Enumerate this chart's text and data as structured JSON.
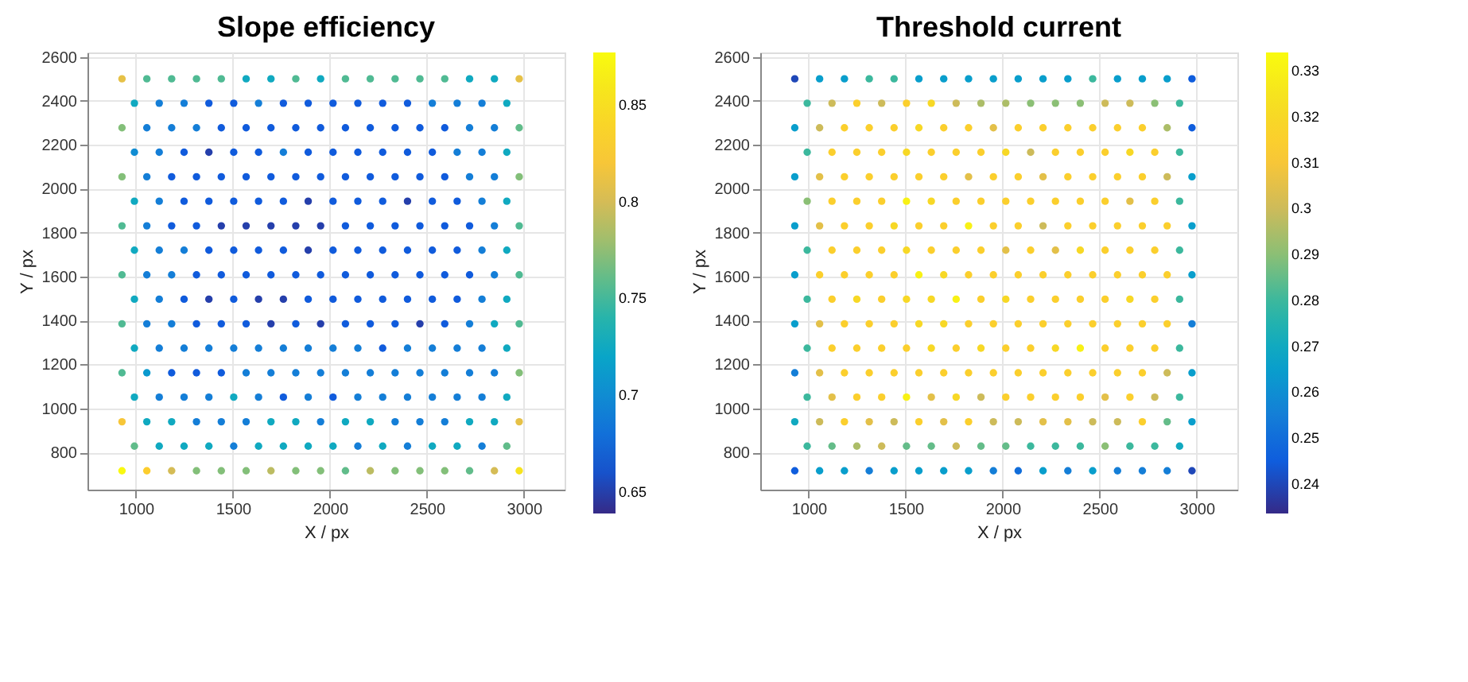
{
  "chart_data": [
    {
      "type": "scatter",
      "title": "Slope efficiency",
      "xlabel": "X / px",
      "ylabel": "Y / px",
      "xlim": [
        750,
        3210
      ],
      "ylim": [
        630,
        2620
      ],
      "xticks": [
        1000,
        1500,
        2000,
        2500,
        3000
      ],
      "yticks": [
        800,
        1000,
        1200,
        1400,
        1600,
        1800,
        2000,
        2200,
        2400,
        2600
      ],
      "grid": true,
      "marker": "circle",
      "clim": [
        0.639,
        0.877
      ],
      "cticks": [
        0.65,
        0.7,
        0.75,
        0.8,
        0.85
      ],
      "x": [
        928,
        1056,
        1184,
        1312,
        1440,
        1568,
        1696,
        1824,
        1952,
        2080,
        2208,
        2336,
        2464,
        2592,
        2720,
        2848,
        2976,
        992,
        1120,
        1248,
        1376,
        1504,
        1632,
        1760,
        1888,
        2016,
        2144,
        2272,
        2400,
        2528,
        2656,
        2784,
        2912,
        928,
        1056,
        1184,
        1312,
        1440,
        1568,
        1696,
        1824,
        1952,
        2080,
        2208,
        2336,
        2464,
        2592,
        2720,
        2848,
        2976,
        992,
        1120,
        1248,
        1376,
        1504,
        1632,
        1760,
        1888,
        2016,
        2144,
        2272,
        2400,
        2528,
        2656,
        2784,
        2912,
        928,
        1056,
        1184,
        1312,
        1440,
        1568,
        1696,
        1824,
        1952,
        2080,
        2208,
        2336,
        2464,
        2592,
        2720,
        2848,
        2976,
        992,
        1120,
        1248,
        1376,
        1504,
        1632,
        1760,
        1888,
        2016,
        2144,
        2272,
        2400,
        2528,
        2656,
        2784,
        2912,
        928,
        1056,
        1184,
        1312,
        1440,
        1568,
        1696,
        1824,
        1952,
        2080,
        2208,
        2336,
        2464,
        2592,
        2720,
        2848,
        2976,
        992,
        1120,
        1248,
        1376,
        1504,
        1632,
        1760,
        1888,
        2016,
        2144,
        2272,
        2400,
        2528,
        2656,
        2784,
        2912,
        928,
        1056,
        1184,
        1312,
        1440,
        1568,
        1696,
        1824,
        1952,
        2080,
        2208,
        2336,
        2464,
        2592,
        2720,
        2848,
        2976,
        992,
        1120,
        1248,
        1376,
        1504,
        1632,
        1760,
        1888,
        2016,
        2144,
        2272,
        2400,
        2528,
        2656,
        2784,
        2912,
        928,
        1056,
        1184,
        1312,
        1440,
        1568,
        1696,
        1824,
        1952,
        2080,
        2208,
        2336,
        2464,
        2592,
        2720,
        2848,
        2976,
        992,
        1120,
        1248,
        1376,
        1504,
        1632,
        1760,
        1888,
        2016,
        2144,
        2272,
        2400,
        2528,
        2656,
        2784,
        2912,
        928,
        1056,
        1184,
        1312,
        1440,
        1568,
        1696,
        1824,
        1952,
        2080,
        2208,
        2336,
        2464,
        2592,
        2720,
        2848,
        2976,
        992,
        1120,
        1248,
        1376,
        1504,
        1632,
        1760,
        1888,
        2016,
        2144,
        2272,
        2400,
        2528,
        2656,
        2784,
        2912,
        928,
        1056,
        1184,
        1312,
        1440,
        1568,
        1696,
        1824,
        1952,
        2080,
        2208,
        2336,
        2464,
        2592,
        2720,
        2848,
        2976,
        992,
        1120,
        1248,
        1376,
        1504,
        1632,
        1760,
        1888,
        2016,
        2144,
        2272,
        2400,
        2528,
        2656,
        2784,
        2912,
        928,
        1056,
        1184,
        1312,
        1440,
        1568,
        1696,
        1824,
        1952,
        2080,
        2208,
        2336,
        2464,
        2592,
        2720,
        2848,
        2976
      ],
      "values": [
        2500,
        2500,
        2500,
        2500,
        2500,
        2500,
        2500,
        2500,
        2500,
        2500,
        2500,
        2500,
        2500,
        2500,
        2500,
        2500,
        2500,
        2389,
        2389,
        2389,
        2389,
        2389,
        2389,
        2389,
        2389,
        2389,
        2389,
        2389,
        2389,
        2389,
        2389,
        2389,
        2389,
        2277,
        2277,
        2277,
        2277,
        2277,
        2277,
        2277,
        2277,
        2277,
        2277,
        2277,
        2277,
        2277,
        2277,
        2277,
        2277,
        2277,
        2166,
        2166,
        2166,
        2166,
        2166,
        2166,
        2166,
        2166,
        2166,
        2166,
        2166,
        2166,
        2166,
        2166,
        2166,
        2166,
        2054,
        2054,
        2054,
        2054,
        2054,
        2054,
        2054,
        2054,
        2054,
        2054,
        2054,
        2054,
        2054,
        2054,
        2054,
        2054,
        2054,
        1943,
        1943,
        1943,
        1943,
        1943,
        1943,
        1943,
        1943,
        1943,
        1943,
        1943,
        1943,
        1943,
        1943,
        1943,
        1943,
        1831,
        1831,
        1831,
        1831,
        1831,
        1831,
        1831,
        1831,
        1831,
        1831,
        1831,
        1831,
        1831,
        1831,
        1831,
        1831,
        1831,
        1720,
        1720,
        1720,
        1720,
        1720,
        1720,
        1720,
        1720,
        1720,
        1720,
        1720,
        1720,
        1720,
        1720,
        1720,
        1720,
        1608,
        1608,
        1608,
        1608,
        1608,
        1608,
        1608,
        1608,
        1608,
        1608,
        1608,
        1608,
        1608,
        1608,
        1608,
        1608,
        1608,
        1497,
        1497,
        1497,
        1497,
        1497,
        1497,
        1497,
        1497,
        1497,
        1497,
        1497,
        1497,
        1497,
        1497,
        1497,
        1497,
        1385,
        1385,
        1385,
        1385,
        1385,
        1385,
        1385,
        1385,
        1385,
        1385,
        1385,
        1385,
        1385,
        1385,
        1385,
        1385,
        1385,
        1274,
        1274,
        1274,
        1274,
        1274,
        1274,
        1274,
        1274,
        1274,
        1274,
        1274,
        1274,
        1274,
        1274,
        1274,
        1274,
        1162,
        1162,
        1162,
        1162,
        1162,
        1162,
        1162,
        1162,
        1162,
        1162,
        1162,
        1162,
        1162,
        1162,
        1162,
        1162,
        1162,
        1051,
        1051,
        1051,
        1051,
        1051,
        1051,
        1051,
        1051,
        1051,
        1051,
        1051,
        1051,
        1051,
        1051,
        1051,
        1051,
        939,
        939,
        939,
        939,
        939,
        939,
        939,
        939,
        939,
        939,
        939,
        939,
        939,
        939,
        939,
        939,
        939,
        828,
        828,
        828,
        828,
        828,
        828,
        828,
        828,
        828,
        828,
        828,
        828,
        828,
        828,
        828,
        828,
        716,
        716,
        716,
        716,
        716,
        716,
        716,
        716,
        716,
        716,
        716,
        716,
        716,
        716,
        716,
        716,
        716
      ],
      "cvalues": [
        0.81,
        0.755,
        0.755,
        0.755,
        0.755,
        0.725,
        0.725,
        0.755,
        0.725,
        0.755,
        0.755,
        0.755,
        0.755,
        0.755,
        0.725,
        0.725,
        0.81,
        0.725,
        0.69,
        0.69,
        0.665,
        0.665,
        0.69,
        0.665,
        0.665,
        0.665,
        0.665,
        0.665,
        0.665,
        0.69,
        0.69,
        0.69,
        0.725,
        0.77,
        0.69,
        0.69,
        0.69,
        0.665,
        0.665,
        0.665,
        0.665,
        0.665,
        0.665,
        0.665,
        0.665,
        0.665,
        0.665,
        0.69,
        0.69,
        0.76,
        0.7,
        0.69,
        0.665,
        0.65,
        0.665,
        0.665,
        0.69,
        0.665,
        0.665,
        0.665,
        0.665,
        0.665,
        0.665,
        0.69,
        0.69,
        0.725,
        0.77,
        0.69,
        0.665,
        0.665,
        0.665,
        0.665,
        0.665,
        0.665,
        0.665,
        0.665,
        0.665,
        0.665,
        0.665,
        0.665,
        0.69,
        0.69,
        0.77,
        0.725,
        0.69,
        0.665,
        0.665,
        0.665,
        0.665,
        0.665,
        0.65,
        0.665,
        0.665,
        0.665,
        0.65,
        0.665,
        0.665,
        0.69,
        0.725,
        0.755,
        0.69,
        0.665,
        0.665,
        0.65,
        0.65,
        0.65,
        0.65,
        0.65,
        0.665,
        0.665,
        0.665,
        0.665,
        0.665,
        0.665,
        0.69,
        0.755,
        0.725,
        0.69,
        0.69,
        0.665,
        0.665,
        0.665,
        0.665,
        0.65,
        0.665,
        0.665,
        0.665,
        0.665,
        0.665,
        0.665,
        0.69,
        0.725,
        0.755,
        0.69,
        0.69,
        0.665,
        0.665,
        0.665,
        0.665,
        0.665,
        0.665,
        0.665,
        0.665,
        0.665,
        0.665,
        0.665,
        0.665,
        0.69,
        0.755,
        0.725,
        0.69,
        0.665,
        0.65,
        0.665,
        0.65,
        0.65,
        0.665,
        0.665,
        0.665,
        0.665,
        0.665,
        0.665,
        0.665,
        0.69,
        0.725,
        0.755,
        0.69,
        0.69,
        0.665,
        0.665,
        0.665,
        0.65,
        0.665,
        0.65,
        0.665,
        0.665,
        0.665,
        0.65,
        0.665,
        0.69,
        0.725,
        0.755,
        0.725,
        0.69,
        0.69,
        0.69,
        0.69,
        0.69,
        0.69,
        0.69,
        0.69,
        0.69,
        0.665,
        0.69,
        0.69,
        0.69,
        0.69,
        0.725,
        0.755,
        0.71,
        0.665,
        0.665,
        0.665,
        0.69,
        0.69,
        0.69,
        0.69,
        0.69,
        0.69,
        0.69,
        0.69,
        0.69,
        0.69,
        0.69,
        0.77,
        0.725,
        0.69,
        0.69,
        0.69,
        0.725,
        0.69,
        0.665,
        0.69,
        0.665,
        0.69,
        0.69,
        0.69,
        0.69,
        0.69,
        0.69,
        0.725,
        0.82,
        0.725,
        0.725,
        0.69,
        0.69,
        0.69,
        0.725,
        0.725,
        0.69,
        0.725,
        0.725,
        0.69,
        0.69,
        0.69,
        0.725,
        0.725,
        0.81,
        0.76,
        0.725,
        0.725,
        0.725,
        0.69,
        0.725,
        0.725,
        0.725,
        0.725,
        0.69,
        0.725,
        0.69,
        0.725,
        0.725,
        0.69,
        0.76,
        0.875,
        0.83,
        0.8,
        0.77,
        0.77,
        0.77,
        0.79,
        0.77,
        0.77,
        0.76,
        0.79,
        0.77,
        0.77,
        0.77,
        0.76,
        0.8,
        0.855
      ]
    },
    {
      "type": "scatter",
      "title": "Threshold current",
      "xlabel": "X / px",
      "ylabel": "Y / px",
      "xlim": [
        750,
        3210
      ],
      "ylim": [
        630,
        2620
      ],
      "xticks": [
        1000,
        1500,
        2000,
        2500,
        3000
      ],
      "yticks": [
        800,
        1000,
        1200,
        1400,
        1600,
        1800,
        2000,
        2200,
        2400,
        2600
      ],
      "grid": true,
      "marker": "circle",
      "clim": [
        0.2336,
        0.334
      ],
      "cticks": [
        0.24,
        0.25,
        0.26,
        0.27,
        0.28,
        0.29,
        0.3,
        0.31,
        0.32,
        0.33
      ],
      "x": [
        928,
        1056,
        1184,
        1312,
        1440,
        1568,
        1696,
        1824,
        1952,
        2080,
        2208,
        2336,
        2464,
        2592,
        2720,
        2848,
        2976,
        992,
        1120,
        1248,
        1376,
        1504,
        1632,
        1760,
        1888,
        2016,
        2144,
        2272,
        2400,
        2528,
        2656,
        2784,
        2912,
        928,
        1056,
        1184,
        1312,
        1440,
        1568,
        1696,
        1824,
        1952,
        2080,
        2208,
        2336,
        2464,
        2592,
        2720,
        2848,
        2976,
        992,
        1120,
        1248,
        1376,
        1504,
        1632,
        1760,
        1888,
        2016,
        2144,
        2272,
        2400,
        2528,
        2656,
        2784,
        2912,
        928,
        1056,
        1184,
        1312,
        1440,
        1568,
        1696,
        1824,
        1952,
        2080,
        2208,
        2336,
        2464,
        2592,
        2720,
        2848,
        2976,
        992,
        1120,
        1248,
        1376,
        1504,
        1632,
        1760,
        1888,
        2016,
        2144,
        2272,
        2400,
        2528,
        2656,
        2784,
        2912,
        928,
        1056,
        1184,
        1312,
        1440,
        1568,
        1696,
        1824,
        1952,
        2080,
        2208,
        2336,
        2464,
        2592,
        2720,
        2848,
        2976,
        992,
        1120,
        1248,
        1376,
        1504,
        1632,
        1760,
        1888,
        2016,
        2144,
        2272,
        2400,
        2528,
        2656,
        2784,
        2912,
        928,
        1056,
        1184,
        1312,
        1440,
        1568,
        1696,
        1824,
        1952,
        2080,
        2208,
        2336,
        2464,
        2592,
        2720,
        2848,
        2976,
        992,
        1120,
        1248,
        1376,
        1504,
        1632,
        1760,
        1888,
        2016,
        2144,
        2272,
        2400,
        2528,
        2656,
        2784,
        2912,
        928,
        1056,
        1184,
        1312,
        1440,
        1568,
        1696,
        1824,
        1952,
        2080,
        2208,
        2336,
        2464,
        2592,
        2720,
        2848,
        2976,
        992,
        1120,
        1248,
        1376,
        1504,
        1632,
        1760,
        1888,
        2016,
        2144,
        2272,
        2400,
        2528,
        2656,
        2784,
        2912,
        928,
        1056,
        1184,
        1312,
        1440,
        1568,
        1696,
        1824,
        1952,
        2080,
        2208,
        2336,
        2464,
        2592,
        2720,
        2848,
        2976,
        992,
        1120,
        1248,
        1376,
        1504,
        1632,
        1760,
        1888,
        2016,
        2144,
        2272,
        2400,
        2528,
        2656,
        2784,
        2912,
        928,
        1056,
        1184,
        1312,
        1440,
        1568,
        1696,
        1824,
        1952,
        2080,
        2208,
        2336,
        2464,
        2592,
        2720,
        2848,
        2976,
        992,
        1120,
        1248,
        1376,
        1504,
        1632,
        1760,
        1888,
        2016,
        2144,
        2272,
        2400,
        2528,
        2656,
        2784,
        2912,
        928,
        1056,
        1184,
        1312,
        1440,
        1568,
        1696,
        1824,
        1952,
        2080,
        2208,
        2336,
        2464,
        2592,
        2720,
        2848,
        2976
      ],
      "values": [
        2500,
        2500,
        2500,
        2500,
        2500,
        2500,
        2500,
        2500,
        2500,
        2500,
        2500,
        2500,
        2500,
        2500,
        2500,
        2500,
        2500,
        2389,
        2389,
        2389,
        2389,
        2389,
        2389,
        2389,
        2389,
        2389,
        2389,
        2389,
        2389,
        2389,
        2389,
        2389,
        2389,
        2277,
        2277,
        2277,
        2277,
        2277,
        2277,
        2277,
        2277,
        2277,
        2277,
        2277,
        2277,
        2277,
        2277,
        2277,
        2277,
        2277,
        2166,
        2166,
        2166,
        2166,
        2166,
        2166,
        2166,
        2166,
        2166,
        2166,
        2166,
        2166,
        2166,
        2166,
        2166,
        2166,
        2054,
        2054,
        2054,
        2054,
        2054,
        2054,
        2054,
        2054,
        2054,
        2054,
        2054,
        2054,
        2054,
        2054,
        2054,
        2054,
        2054,
        1943,
        1943,
        1943,
        1943,
        1943,
        1943,
        1943,
        1943,
        1943,
        1943,
        1943,
        1943,
        1943,
        1943,
        1943,
        1943,
        1831,
        1831,
        1831,
        1831,
        1831,
        1831,
        1831,
        1831,
        1831,
        1831,
        1831,
        1831,
        1831,
        1831,
        1831,
        1831,
        1831,
        1720,
        1720,
        1720,
        1720,
        1720,
        1720,
        1720,
        1720,
        1720,
        1720,
        1720,
        1720,
        1720,
        1720,
        1720,
        1720,
        1608,
        1608,
        1608,
        1608,
        1608,
        1608,
        1608,
        1608,
        1608,
        1608,
        1608,
        1608,
        1608,
        1608,
        1608,
        1608,
        1608,
        1497,
        1497,
        1497,
        1497,
        1497,
        1497,
        1497,
        1497,
        1497,
        1497,
        1497,
        1497,
        1497,
        1497,
        1497,
        1497,
        1385,
        1385,
        1385,
        1385,
        1385,
        1385,
        1385,
        1385,
        1385,
        1385,
        1385,
        1385,
        1385,
        1385,
        1385,
        1385,
        1385,
        1274,
        1274,
        1274,
        1274,
        1274,
        1274,
        1274,
        1274,
        1274,
        1274,
        1274,
        1274,
        1274,
        1274,
        1274,
        1274,
        1162,
        1162,
        1162,
        1162,
        1162,
        1162,
        1162,
        1162,
        1162,
        1162,
        1162,
        1162,
        1162,
        1162,
        1162,
        1162,
        1162,
        1051,
        1051,
        1051,
        1051,
        1051,
        1051,
        1051,
        1051,
        1051,
        1051,
        1051,
        1051,
        1051,
        1051,
        1051,
        1051,
        939,
        939,
        939,
        939,
        939,
        939,
        939,
        939,
        939,
        939,
        939,
        939,
        939,
        939,
        939,
        939,
        939,
        828,
        828,
        828,
        828,
        828,
        828,
        828,
        828,
        828,
        828,
        828,
        828,
        828,
        828,
        828,
        828,
        716,
        716,
        716,
        716,
        716,
        716,
        716,
        716,
        716,
        716,
        716,
        716,
        716,
        716,
        716,
        716,
        716
      ],
      "cvalues": [
        0.24,
        0.265,
        0.265,
        0.28,
        0.28,
        0.265,
        0.265,
        0.265,
        0.265,
        0.265,
        0.265,
        0.265,
        0.28,
        0.265,
        0.265,
        0.265,
        0.245,
        0.28,
        0.3,
        0.315,
        0.3,
        0.315,
        0.32,
        0.3,
        0.295,
        0.295,
        0.29,
        0.29,
        0.29,
        0.3,
        0.3,
        0.29,
        0.28,
        0.265,
        0.3,
        0.315,
        0.315,
        0.315,
        0.32,
        0.315,
        0.315,
        0.305,
        0.315,
        0.315,
        0.315,
        0.315,
        0.315,
        0.315,
        0.295,
        0.245,
        0.28,
        0.315,
        0.315,
        0.315,
        0.32,
        0.315,
        0.315,
        0.315,
        0.32,
        0.3,
        0.315,
        0.315,
        0.315,
        0.32,
        0.315,
        0.28,
        0.265,
        0.305,
        0.315,
        0.315,
        0.315,
        0.315,
        0.315,
        0.305,
        0.315,
        0.315,
        0.305,
        0.315,
        0.315,
        0.315,
        0.315,
        0.3,
        0.265,
        0.29,
        0.315,
        0.315,
        0.315,
        0.33,
        0.32,
        0.315,
        0.315,
        0.315,
        0.315,
        0.315,
        0.315,
        0.315,
        0.305,
        0.315,
        0.28,
        0.265,
        0.305,
        0.315,
        0.315,
        0.32,
        0.315,
        0.315,
        0.33,
        0.315,
        0.315,
        0.3,
        0.315,
        0.315,
        0.315,
        0.315,
        0.315,
        0.265,
        0.28,
        0.315,
        0.315,
        0.315,
        0.32,
        0.315,
        0.315,
        0.315,
        0.305,
        0.315,
        0.305,
        0.32,
        0.315,
        0.315,
        0.315,
        0.28,
        0.265,
        0.315,
        0.315,
        0.315,
        0.315,
        0.33,
        0.32,
        0.315,
        0.315,
        0.315,
        0.315,
        0.315,
        0.315,
        0.315,
        0.315,
        0.315,
        0.265,
        0.28,
        0.315,
        0.32,
        0.315,
        0.32,
        0.32,
        0.33,
        0.315,
        0.32,
        0.315,
        0.315,
        0.315,
        0.315,
        0.32,
        0.315,
        0.28,
        0.265,
        0.305,
        0.315,
        0.315,
        0.315,
        0.32,
        0.32,
        0.315,
        0.315,
        0.315,
        0.315,
        0.315,
        0.315,
        0.315,
        0.315,
        0.315,
        0.255,
        0.28,
        0.315,
        0.315,
        0.315,
        0.315,
        0.32,
        0.315,
        0.32,
        0.315,
        0.315,
        0.32,
        0.33,
        0.315,
        0.315,
        0.315,
        0.28,
        0.255,
        0.305,
        0.315,
        0.315,
        0.315,
        0.315,
        0.315,
        0.315,
        0.315,
        0.315,
        0.315,
        0.315,
        0.315,
        0.315,
        0.315,
        0.3,
        0.265,
        0.28,
        0.305,
        0.315,
        0.315,
        0.33,
        0.305,
        0.32,
        0.3,
        0.315,
        0.315,
        0.315,
        0.315,
        0.305,
        0.315,
        0.3,
        0.28,
        0.27,
        0.3,
        0.315,
        0.305,
        0.3,
        0.315,
        0.305,
        0.315,
        0.3,
        0.3,
        0.305,
        0.305,
        0.3,
        0.3,
        0.315,
        0.285,
        0.265,
        0.28,
        0.285,
        0.295,
        0.3,
        0.285,
        0.285,
        0.3,
        0.285,
        0.285,
        0.28,
        0.28,
        0.28,
        0.29,
        0.28,
        0.28,
        0.27,
        0.245,
        0.265,
        0.265,
        0.255,
        0.265,
        0.265,
        0.265,
        0.265,
        0.255,
        0.25,
        0.265,
        0.255,
        0.265,
        0.255,
        0.255,
        0.255,
        0.24
      ]
    }
  ]
}
